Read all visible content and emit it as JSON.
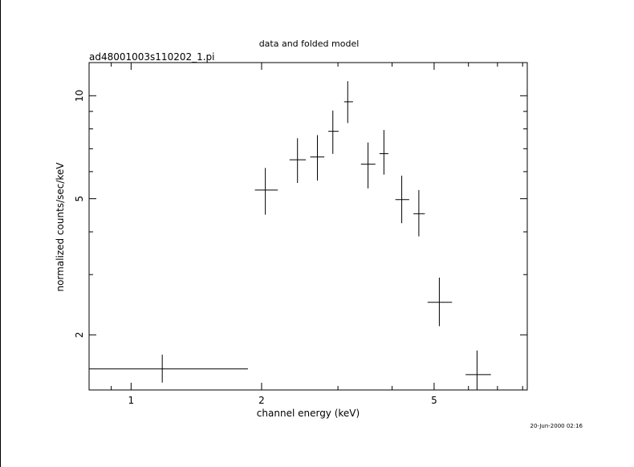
{
  "chart_data": {
    "type": "scatter",
    "title": "data and folded model",
    "subtitle": "ad48001003s110202_1.pi",
    "xlabel": "channel energy (keV)",
    "ylabel": "normalized counts/sec/keV",
    "timestamp": "20-Jun-2000 02:16",
    "x_scale": "log",
    "y_scale": "log",
    "xlim": [
      0.8,
      8.2
    ],
    "ylim": [
      1.38,
      12.5
    ],
    "x_ticks": [
      {
        "value": 1,
        "label": "1"
      },
      {
        "value": 2,
        "label": "2"
      },
      {
        "value": 5,
        "label": "5"
      }
    ],
    "y_ticks": [
      {
        "value": 2,
        "label": "2"
      },
      {
        "value": 5,
        "label": "5"
      },
      {
        "value": 10,
        "label": "10"
      }
    ],
    "grid": false,
    "points": [
      {
        "x": 1.18,
        "xlo": 0.8,
        "xhi": 1.86,
        "y": 1.59,
        "ylo": 1.45,
        "yhi": 1.75
      },
      {
        "x": 2.04,
        "xlo": 1.93,
        "xhi": 2.18,
        "y": 5.3,
        "ylo": 4.49,
        "yhi": 6.15
      },
      {
        "x": 2.42,
        "xlo": 2.32,
        "xhi": 2.53,
        "y": 6.5,
        "ylo": 5.56,
        "yhi": 7.51
      },
      {
        "x": 2.69,
        "xlo": 2.59,
        "xhi": 2.79,
        "y": 6.62,
        "ylo": 5.65,
        "yhi": 7.67
      },
      {
        "x": 2.92,
        "xlo": 2.85,
        "xhi": 3.01,
        "y": 7.87,
        "ylo": 6.76,
        "yhi": 9.05
      },
      {
        "x": 3.16,
        "xlo": 3.1,
        "xhi": 3.25,
        "y": 9.6,
        "ylo": 8.32,
        "yhi": 11.03
      },
      {
        "x": 3.52,
        "xlo": 3.39,
        "xhi": 3.66,
        "y": 6.31,
        "ylo": 5.36,
        "yhi": 7.3
      },
      {
        "x": 3.83,
        "xlo": 3.74,
        "xhi": 3.92,
        "y": 6.77,
        "ylo": 5.88,
        "yhi": 7.94
      },
      {
        "x": 4.21,
        "xlo": 4.07,
        "xhi": 4.38,
        "y": 4.97,
        "ylo": 4.24,
        "yhi": 5.84
      },
      {
        "x": 4.61,
        "xlo": 4.48,
        "xhi": 4.76,
        "y": 4.52,
        "ylo": 3.88,
        "yhi": 5.3
      },
      {
        "x": 5.14,
        "xlo": 4.83,
        "xhi": 5.5,
        "y": 2.49,
        "ylo": 2.12,
        "yhi": 2.94
      },
      {
        "x": 6.28,
        "xlo": 5.91,
        "xhi": 6.76,
        "y": 1.53,
        "ylo": 1.3,
        "yhi": 1.8
      }
    ]
  }
}
